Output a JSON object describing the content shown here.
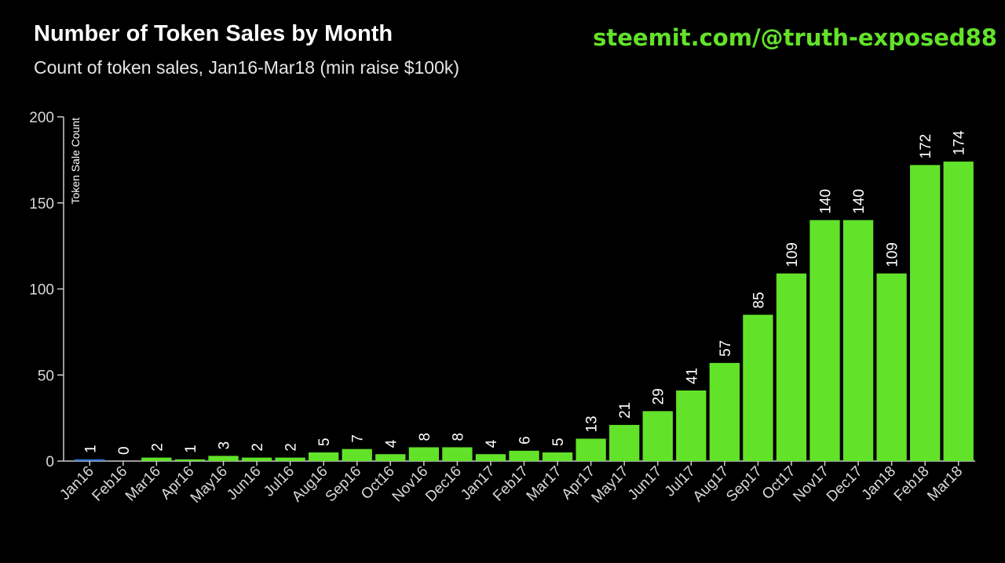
{
  "header": {
    "title": "Number of Token Sales by Month",
    "subtitle": "Count of token sales, Jan16-Mar18 (min raise $100k)",
    "watermark": "steemit.com/@truth-exposed88"
  },
  "colors": {
    "background": "#000000",
    "bar": "#62e32a",
    "bar_highlight": "#3b7fdc",
    "watermark": "#62e32a",
    "axis": "#cccccc"
  },
  "chart_data": {
    "type": "bar",
    "title": "Number of Token Sales by Month",
    "subtitle": "Count of token sales, Jan16-Mar18 (min raise $100k)",
    "xlabel": "",
    "ylabel": "Token Sale Count",
    "ylim": [
      0,
      200
    ],
    "yticks": [
      0,
      50,
      100,
      150,
      200
    ],
    "grid": false,
    "categories": [
      "Jan16",
      "Feb16",
      "Mar16",
      "Apr16",
      "May16",
      "Jun16",
      "Jul16",
      "Aug16",
      "Sep16",
      "Oct16",
      "Nov16",
      "Dec16",
      "Jan17",
      "Feb17",
      "Mar17",
      "Apr17",
      "May17",
      "Jun17",
      "Jul17",
      "Aug17",
      "Sep17",
      "Oct17",
      "Nov17",
      "Dec17",
      "Jan18",
      "Feb18",
      "Mar18"
    ],
    "values": [
      1,
      0,
      2,
      1,
      3,
      2,
      2,
      5,
      7,
      4,
      8,
      8,
      4,
      6,
      5,
      13,
      21,
      29,
      41,
      57,
      85,
      109,
      140,
      140,
      109,
      172,
      174
    ],
    "highlight_index": 0
  }
}
